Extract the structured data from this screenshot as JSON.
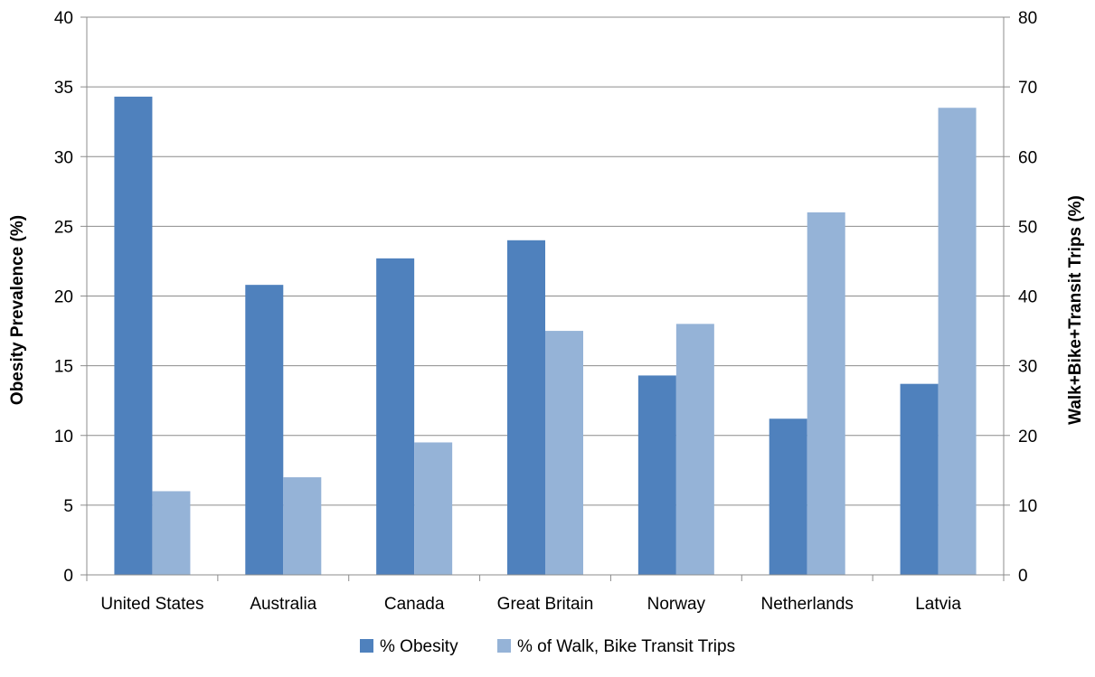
{
  "chart_data": {
    "type": "bar",
    "categories": [
      "United States",
      "Australia",
      "Canada",
      "Great Britain",
      "Norway",
      "Netherlands",
      "Latvia"
    ],
    "series": [
      {
        "name": "% Obesity",
        "axis": "left",
        "values": [
          34.3,
          20.8,
          22.7,
          24.0,
          14.3,
          11.2,
          13.7
        ],
        "color": "#4f81bd"
      },
      {
        "name": "% of Walk, Bike Transit Trips",
        "axis": "right",
        "values": [
          12,
          14,
          19,
          35,
          36,
          52,
          67
        ],
        "color": "#95b3d7"
      }
    ],
    "ylabel": "Obesity Prevalence (%)",
    "y2label": "Walk+Bike+Transit Trips (%)",
    "ylim": [
      0,
      40
    ],
    "y2lim": [
      0,
      80
    ],
    "yticks": [
      "0",
      "5",
      "10",
      "15",
      "20",
      "25",
      "30",
      "35",
      "40"
    ],
    "y2ticks": [
      "0",
      "10",
      "20",
      "30",
      "40",
      "50",
      "60",
      "70",
      "80"
    ],
    "grid": true,
    "legend": "bottom-center"
  }
}
